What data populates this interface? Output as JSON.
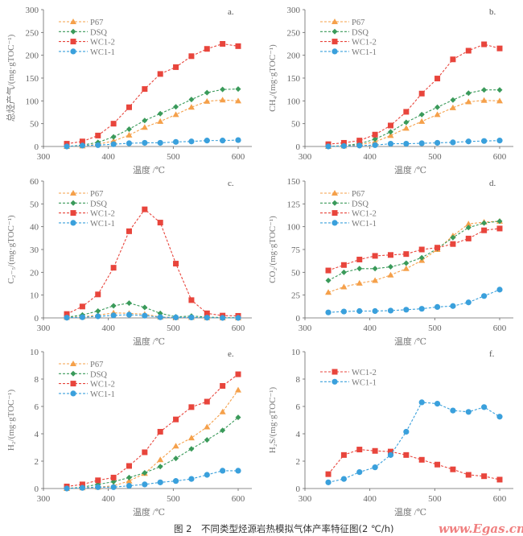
{
  "caption": "图 2　不同类型烃源岩热模拟气体产率特征图(2 ℃/h)",
  "watermark": "www.Egas.cn",
  "series_styles": {
    "P67": {
      "color": "#f5a04a",
      "marker": "triangle"
    },
    "DSQ": {
      "color": "#3a9a5a",
      "marker": "diamond"
    },
    "WC1-2": {
      "color": "#e8453c",
      "marker": "square"
    },
    "WC1-1": {
      "color": "#3aa0dc",
      "marker": "circle"
    }
  },
  "chart_data": [
    {
      "type": "line",
      "panel_label": "a.",
      "xlabel": "温度 /℃",
      "ylabel": "总烃产气/(mg·gTOC⁻¹)",
      "xlim": [
        300,
        620
      ],
      "ylim": [
        0,
        300
      ],
      "xticks": [
        300,
        400,
        500,
        600
      ],
      "yticks": [
        0,
        50,
        100,
        150,
        200,
        250,
        300
      ],
      "legend": "top-left",
      "x": [
        336,
        360,
        384,
        408,
        432,
        456,
        480,
        504,
        528,
        552,
        576,
        600
      ],
      "series": [
        {
          "name": "P67",
          "values": [
            0,
            1,
            5,
            12,
            25,
            42,
            55,
            70,
            86,
            99,
            102,
            100
          ]
        },
        {
          "name": "DSQ",
          "values": [
            0,
            3,
            9,
            21,
            38,
            57,
            72,
            87,
            103,
            118,
            125,
            126
          ]
        },
        {
          "name": "WC1-2",
          "values": [
            6,
            11,
            24,
            50,
            86,
            126,
            159,
            174,
            198,
            214,
            225,
            220
          ]
        },
        {
          "name": "WC1-1",
          "values": [
            0,
            2,
            3,
            5,
            7,
            8,
            8,
            10,
            11,
            13,
            13,
            14
          ]
        }
      ]
    },
    {
      "type": "line",
      "panel_label": "b.",
      "xlabel": "温度 /℃",
      "ylabel": "CH₄/(mg·gTOC⁻¹)",
      "xlim": [
        300,
        620
      ],
      "ylim": [
        0,
        300
      ],
      "xticks": [
        300,
        400,
        500,
        600
      ],
      "yticks": [
        0,
        50,
        100,
        150,
        200,
        250,
        300
      ],
      "legend": "top-left",
      "x": [
        336,
        360,
        384,
        408,
        432,
        456,
        480,
        504,
        528,
        552,
        576,
        600
      ],
      "series": [
        {
          "name": "P67",
          "values": [
            0,
            1,
            4,
            10,
            24,
            40,
            55,
            70,
            85,
            98,
            101,
            100
          ]
        },
        {
          "name": "DSQ",
          "values": [
            0,
            2,
            6,
            16,
            32,
            53,
            70,
            86,
            102,
            117,
            124,
            124
          ]
        },
        {
          "name": "WC1-2",
          "values": [
            5,
            8,
            13,
            26,
            46,
            76,
            116,
            149,
            191,
            210,
            224,
            215
          ]
        },
        {
          "name": "WC1-1",
          "values": [
            0,
            1,
            2,
            3,
            6,
            6,
            7,
            8,
            9,
            11,
            12,
            13
          ]
        }
      ]
    },
    {
      "type": "line",
      "panel_label": "c.",
      "xlabel": "温度 /℃",
      "ylabel": "C₂₋₅/(mg·gTOC⁻¹)",
      "xlim": [
        300,
        620
      ],
      "ylim": [
        0,
        60
      ],
      "xticks": [
        300,
        400,
        500,
        600
      ],
      "yticks": [
        0,
        10,
        20,
        30,
        40,
        50,
        60
      ],
      "legend": "top-left",
      "x": [
        336,
        360,
        384,
        408,
        432,
        456,
        480,
        504,
        528,
        552,
        576,
        600
      ],
      "series": [
        {
          "name": "P67",
          "values": [
            0.2,
            0.5,
            1.2,
            2.2,
            2.0,
            1.6,
            0.4,
            0.2,
            0.2,
            0.1,
            0,
            0
          ]
        },
        {
          "name": "DSQ",
          "values": [
            0.3,
            1.3,
            3.0,
            5.3,
            6.5,
            4.6,
            2.0,
            0.5,
            0.8,
            0.4,
            0.1,
            0.1
          ]
        },
        {
          "name": "WC1-2",
          "values": [
            1.7,
            5.0,
            10.3,
            22,
            38,
            47.6,
            41.8,
            23.8,
            7.8,
            2.0,
            1.0,
            0.9
          ]
        },
        {
          "name": "WC1-1",
          "values": [
            0.1,
            0.3,
            0.7,
            1.1,
            1.4,
            1.0,
            0.3,
            0.2,
            0.2,
            0.1,
            0,
            0
          ]
        }
      ]
    },
    {
      "type": "line",
      "panel_label": "d.",
      "xlabel": "温度 /℃",
      "ylabel": "CO₂/(mg·gTOC⁻¹)",
      "xlim": [
        300,
        620
      ],
      "ylim": [
        0,
        150
      ],
      "xticks": [
        300,
        400,
        500,
        600
      ],
      "yticks": [
        0,
        25,
        50,
        75,
        100,
        125,
        150
      ],
      "legend": "top-left",
      "x": [
        336,
        360,
        384,
        408,
        432,
        456,
        480,
        504,
        528,
        552,
        576,
        600
      ],
      "series": [
        {
          "name": "P67",
          "values": [
            28,
            34,
            38,
            41,
            47,
            54,
            63,
            75,
            90,
            103,
            105,
            106
          ]
        },
        {
          "name": "DSQ",
          "values": [
            41,
            50,
            54,
            54,
            56,
            60,
            66,
            76,
            88,
            99,
            104,
            106
          ]
        },
        {
          "name": "WC1-2",
          "values": [
            52,
            58,
            64,
            68,
            69,
            70,
            75,
            77,
            81,
            87,
            96,
            98
          ]
        },
        {
          "name": "WC1-1",
          "values": [
            6,
            7,
            7.5,
            7.5,
            8,
            9,
            10,
            12,
            13,
            17,
            24,
            31
          ]
        }
      ]
    },
    {
      "type": "line",
      "panel_label": "e.",
      "xlabel": "温度 /℃",
      "ylabel": "H₂/(mg·gTOC⁻¹)",
      "xlim": [
        300,
        620
      ],
      "ylim": [
        0,
        10
      ],
      "xticks": [
        300,
        400,
        500,
        600
      ],
      "yticks": [
        0,
        2,
        4,
        6,
        8,
        10
      ],
      "legend": "top-left",
      "x": [
        336,
        360,
        384,
        408,
        432,
        456,
        480,
        504,
        528,
        552,
        576,
        600
      ],
      "series": [
        {
          "name": "P67",
          "values": [
            0,
            0.05,
            0.1,
            0.2,
            0.55,
            1.1,
            2.1,
            3.1,
            3.7,
            4.5,
            5.6,
            7.2
          ]
        },
        {
          "name": "DSQ",
          "values": [
            0,
            0.1,
            0.3,
            0.5,
            0.8,
            1.15,
            1.6,
            2.2,
            2.9,
            3.55,
            4.25,
            5.2
          ]
        },
        {
          "name": "WC1-2",
          "values": [
            0.15,
            0.3,
            0.6,
            0.8,
            1.65,
            2.65,
            4.15,
            5.05,
            5.95,
            6.35,
            7.5,
            8.35
          ]
        },
        {
          "name": "WC1-1",
          "values": [
            0,
            0.05,
            0.1,
            0.1,
            0.2,
            0.3,
            0.45,
            0.55,
            0.7,
            1.0,
            1.3,
            1.3
          ]
        }
      ]
    },
    {
      "type": "line",
      "panel_label": "f.",
      "xlabel": "温度 /℃",
      "ylabel": "H₂S/(mg·gTOC⁻¹)",
      "xlim": [
        300,
        620
      ],
      "ylim": [
        0,
        10
      ],
      "xticks": [
        300,
        400,
        500,
        600
      ],
      "yticks": [
        0,
        2,
        4,
        6,
        8,
        10
      ],
      "legend": "top-left",
      "x": [
        336,
        360,
        384,
        408,
        432,
        456,
        480,
        504,
        528,
        552,
        576,
        600
      ],
      "series": [
        {
          "name": "WC1-2",
          "values": [
            1.05,
            2.45,
            2.85,
            2.75,
            2.7,
            2.45,
            2.1,
            1.75,
            1.4,
            1.0,
            0.9,
            0.65
          ]
        },
        {
          "name": "WC1-1",
          "values": [
            0.45,
            0.7,
            1.2,
            1.55,
            2.45,
            4.15,
            6.3,
            6.2,
            5.7,
            5.6,
            5.95,
            5.25
          ]
        }
      ]
    }
  ]
}
